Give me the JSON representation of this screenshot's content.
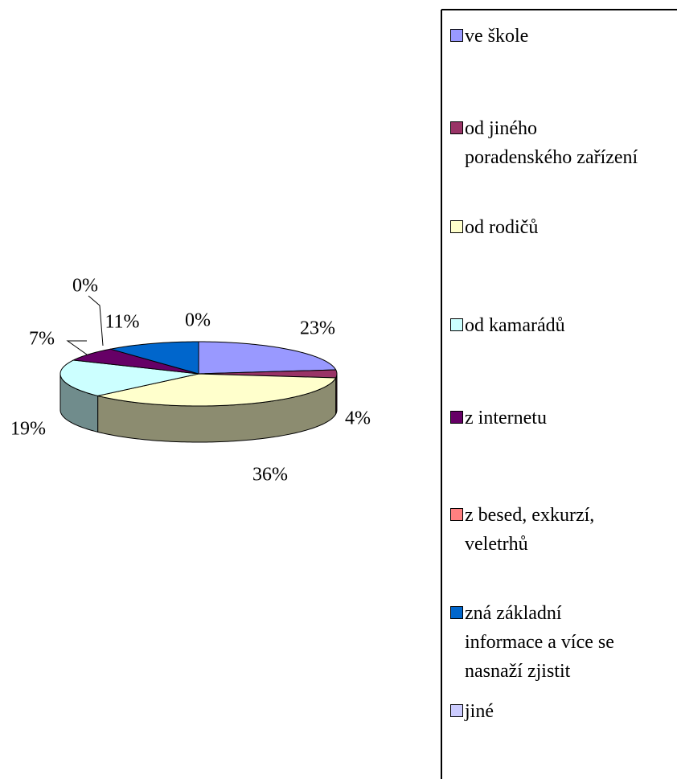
{
  "chart_data": {
    "type": "pie3d",
    "categories": [
      "ve škole",
      "od jiného poradenského zařízení",
      "od rodičů",
      "od kamarádů",
      "z internetu",
      "z besed, exkurzí, veletrhů",
      "zná základní informace a více se nasnaží zjistit",
      "jiné"
    ],
    "values": [
      23,
      4,
      36,
      19,
      7,
      0,
      11,
      0
    ],
    "value_labels": [
      "23%",
      "4%",
      "36%",
      "19%",
      "7%",
      "0%",
      "11%",
      "0%"
    ],
    "colors": [
      "#9999ff",
      "#993366",
      "#ffffcc",
      "#ccffff",
      "#660066",
      "#ff8080",
      "#0066cc",
      "#ccccff"
    ],
    "legend": "right"
  }
}
